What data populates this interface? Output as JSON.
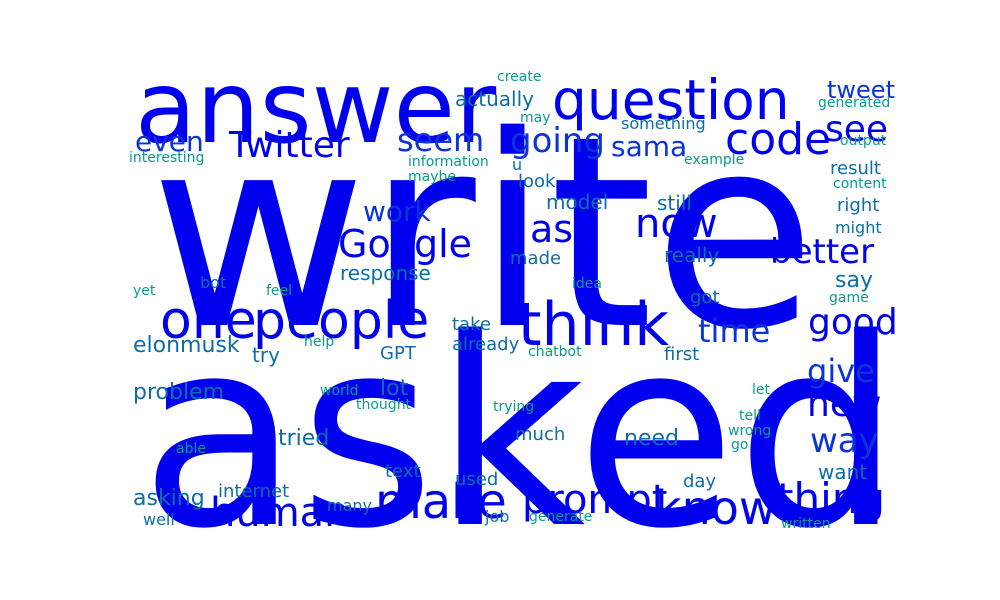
{
  "palette": {
    "strong": "#0000ee",
    "mid": "#0a34d8",
    "teal": "#0b6fa6",
    "green": "#0a9a8e"
  },
  "words": [
    {
      "text": "write",
      "weight": 1.0,
      "tone": "strong"
    },
    {
      "text": "asked",
      "weight": 0.98,
      "tone": "strong"
    },
    {
      "text": "answer",
      "weight": 0.55,
      "tone": "strong"
    },
    {
      "text": "question",
      "weight": 0.32,
      "tone": "strong"
    },
    {
      "text": "think",
      "weight": 0.35,
      "tone": "strong"
    },
    {
      "text": "people",
      "weight": 0.3,
      "tone": "strong"
    },
    {
      "text": "one",
      "weight": 0.3,
      "tone": "strong"
    },
    {
      "text": "make",
      "weight": 0.28,
      "tone": "strong"
    },
    {
      "text": "prompt",
      "weight": 0.24,
      "tone": "strong"
    },
    {
      "text": "know",
      "weight": 0.27,
      "tone": "strong"
    },
    {
      "text": "thing",
      "weight": 0.26,
      "tone": "strong"
    },
    {
      "text": "human",
      "weight": 0.24,
      "tone": "strong"
    },
    {
      "text": "code",
      "weight": 0.25,
      "tone": "strong"
    },
    {
      "text": "Google",
      "weight": 0.2,
      "tone": "strong"
    },
    {
      "text": "Twitter",
      "weight": 0.2,
      "tone": "strong"
    },
    {
      "text": "ask",
      "weight": 0.2,
      "tone": "strong"
    },
    {
      "text": "now",
      "weight": 0.2,
      "tone": "strong"
    },
    {
      "text": "see",
      "weight": 0.2,
      "tone": "strong"
    },
    {
      "text": "good",
      "weight": 0.19,
      "tone": "strong"
    },
    {
      "text": "new",
      "weight": 0.19,
      "tone": "strong"
    },
    {
      "text": "better",
      "weight": 0.17,
      "tone": "strong"
    },
    {
      "text": "going",
      "weight": 0.17,
      "tone": "mid"
    },
    {
      "text": "seem",
      "weight": 0.17,
      "tone": "mid"
    },
    {
      "text": "even",
      "weight": 0.15,
      "tone": "mid"
    },
    {
      "text": "time",
      "weight": 0.16,
      "tone": "mid"
    },
    {
      "text": "give",
      "weight": 0.16,
      "tone": "mid"
    },
    {
      "text": "way",
      "weight": 0.16,
      "tone": "mid"
    },
    {
      "text": "sama",
      "weight": 0.13,
      "tone": "mid"
    },
    {
      "text": "work",
      "weight": 0.13,
      "tone": "mid"
    },
    {
      "text": "tweet",
      "weight": 0.1,
      "tone": "mid"
    },
    {
      "text": "actually",
      "weight": 0.1,
      "tone": "teal"
    },
    {
      "text": "elonmusk",
      "weight": 0.09,
      "tone": "teal"
    },
    {
      "text": "response",
      "weight": 0.09,
      "tone": "teal"
    },
    {
      "text": "really",
      "weight": 0.09,
      "tone": "teal"
    },
    {
      "text": "still",
      "weight": 0.09,
      "tone": "teal"
    },
    {
      "text": "model",
      "weight": 0.09,
      "tone": "teal"
    },
    {
      "text": "try",
      "weight": 0.09,
      "tone": "teal"
    },
    {
      "text": "lot",
      "weight": 0.09,
      "tone": "teal"
    },
    {
      "text": "problem",
      "weight": 0.09,
      "tone": "teal"
    },
    {
      "text": "tried",
      "weight": 0.09,
      "tone": "teal"
    },
    {
      "text": "need",
      "weight": 0.09,
      "tone": "teal"
    },
    {
      "text": "asking",
      "weight": 0.09,
      "tone": "teal"
    },
    {
      "text": "say",
      "weight": 0.09,
      "tone": "teal"
    },
    {
      "text": "want",
      "weight": 0.08,
      "tone": "teal"
    },
    {
      "text": "result",
      "weight": 0.07,
      "tone": "teal"
    },
    {
      "text": "right",
      "weight": 0.07,
      "tone": "teal"
    },
    {
      "text": "got",
      "weight": 0.07,
      "tone": "teal"
    },
    {
      "text": "take",
      "weight": 0.07,
      "tone": "teal"
    },
    {
      "text": "already",
      "weight": 0.07,
      "tone": "teal"
    },
    {
      "text": "first",
      "weight": 0.07,
      "tone": "teal"
    },
    {
      "text": "much",
      "weight": 0.07,
      "tone": "teal"
    },
    {
      "text": "made",
      "weight": 0.07,
      "tone": "teal"
    },
    {
      "text": "look",
      "weight": 0.07,
      "tone": "teal"
    },
    {
      "text": "GPT",
      "weight": 0.07,
      "tone": "teal"
    },
    {
      "text": "text",
      "weight": 0.07,
      "tone": "teal"
    },
    {
      "text": "used",
      "weight": 0.07,
      "tone": "teal"
    },
    {
      "text": "internet",
      "weight": 0.07,
      "tone": "teal"
    },
    {
      "text": "day",
      "weight": 0.07,
      "tone": "teal"
    },
    {
      "text": "well",
      "weight": 0.06,
      "tone": "teal"
    },
    {
      "text": "many",
      "weight": 0.06,
      "tone": "teal"
    },
    {
      "text": "job",
      "weight": 0.06,
      "tone": "teal"
    },
    {
      "text": "might",
      "weight": 0.06,
      "tone": "teal"
    },
    {
      "text": "something",
      "weight": 0.06,
      "tone": "teal"
    },
    {
      "text": "bot",
      "weight": 0.06,
      "tone": "teal"
    },
    {
      "text": "u",
      "weight": 0.06,
      "tone": "teal"
    },
    {
      "text": "create",
      "weight": 0.05,
      "tone": "green"
    },
    {
      "text": "may",
      "weight": 0.05,
      "tone": "green"
    },
    {
      "text": "generated",
      "weight": 0.05,
      "tone": "green"
    },
    {
      "text": "output",
      "weight": 0.05,
      "tone": "green"
    },
    {
      "text": "interesting",
      "weight": 0.05,
      "tone": "green"
    },
    {
      "text": "information",
      "weight": 0.05,
      "tone": "green"
    },
    {
      "text": "maybe",
      "weight": 0.05,
      "tone": "green"
    },
    {
      "text": "example",
      "weight": 0.05,
      "tone": "green"
    },
    {
      "text": "content",
      "weight": 0.05,
      "tone": "green"
    },
    {
      "text": "idea",
      "weight": 0.05,
      "tone": "green"
    },
    {
      "text": "yet",
      "weight": 0.05,
      "tone": "green"
    },
    {
      "text": "feel",
      "weight": 0.05,
      "tone": "green"
    },
    {
      "text": "game",
      "weight": 0.05,
      "tone": "green"
    },
    {
      "text": "help",
      "weight": 0.05,
      "tone": "green"
    },
    {
      "text": "chatbot",
      "weight": 0.05,
      "tone": "green"
    },
    {
      "text": "world",
      "weight": 0.05,
      "tone": "green"
    },
    {
      "text": "thought",
      "weight": 0.05,
      "tone": "green"
    },
    {
      "text": "trying",
      "weight": 0.05,
      "tone": "green"
    },
    {
      "text": "let",
      "weight": 0.05,
      "tone": "green"
    },
    {
      "text": "tell",
      "weight": 0.05,
      "tone": "green"
    },
    {
      "text": "wrong",
      "weight": 0.05,
      "tone": "green"
    },
    {
      "text": "go",
      "weight": 0.05,
      "tone": "green"
    },
    {
      "text": "able",
      "weight": 0.05,
      "tone": "green"
    },
    {
      "text": "generate",
      "weight": 0.05,
      "tone": "green"
    },
    {
      "text": "written",
      "weight": 0.05,
      "tone": "green"
    }
  ]
}
